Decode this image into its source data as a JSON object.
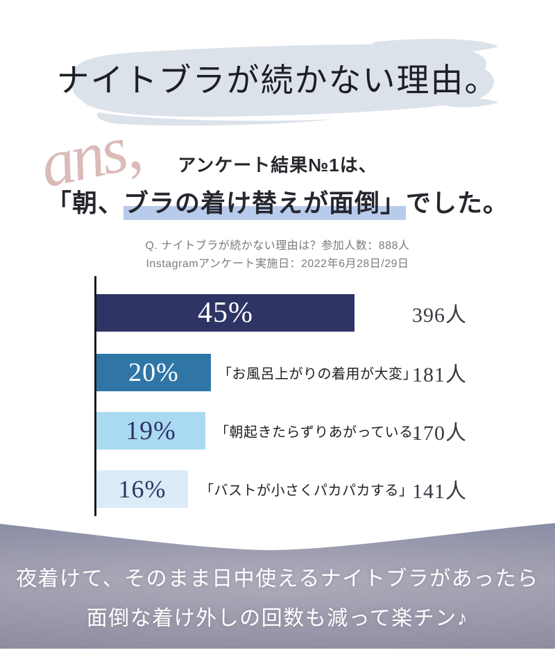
{
  "title": {
    "text": "ナイトブラが続かない理由。"
  },
  "subtitle": {
    "script": "ans,",
    "line1": "アンケート結果№1は、",
    "line2_pre": "「朝、",
    "line2_highlight": "ブラの着け替えが面倒」",
    "line2_post": "でした。"
  },
  "survey_note": {
    "line1": "Q. ナイトブラが続かない理由は？参加人数：888人",
    "line2": "Instagramアンケート実施日：2022年6月28日/29日"
  },
  "chart_data": {
    "type": "bar",
    "orientation": "horizontal",
    "title": "ナイトブラが続かない理由は？",
    "participants_total": 888,
    "unit": "人",
    "categories": [
      "朝、ブラの着け替えが面倒",
      "お風呂上がりの着用が大変",
      "朝起きたらずりあがっている",
      "バストが小さくパカパカする"
    ],
    "values_percent": [
      45,
      20,
      19,
      16
    ],
    "values_people": [
      396,
      181,
      170,
      141
    ],
    "legend": "none",
    "grid": false,
    "bars": [
      {
        "percent": "45%",
        "percent_value": 45,
        "people": "396人",
        "label": "",
        "color": "#2e3464",
        "text_color": "#ffffff"
      },
      {
        "percent": "20%",
        "percent_value": 20,
        "people": "181人",
        "label": "「お風呂上がりの着用が大変」",
        "color": "#2f76a6",
        "text_color": "#ffffff"
      },
      {
        "percent": "19%",
        "percent_value": 19,
        "people": "170人",
        "label": "「朝起きたらずりあがっている」",
        "color": "#a9daf2",
        "text_color": "#2e3464"
      },
      {
        "percent": "16%",
        "percent_value": 16,
        "people": "141人",
        "label": "「バストが小さくパカパカする」",
        "color": "#dcebf8",
        "text_color": "#2e3464"
      }
    ]
  },
  "footer": {
    "line1": "夜着けて、そのまま日中使えるナイトブラがあったら",
    "line2": "面倒な着け外しの回数も減って楽チン♪"
  },
  "colors": {
    "brush_stroke": "#dce2e9",
    "highlight": "#b7cbec",
    "script": "#dabbb7",
    "note_text": "#7b7b7b",
    "axis": "#1a1a1a",
    "people_text": "#3a3a42",
    "band_top": "#878ba3",
    "band_mid": "#a29daf",
    "band_bottom": "#8f8ba0",
    "footer_text": "#ffffff"
  }
}
